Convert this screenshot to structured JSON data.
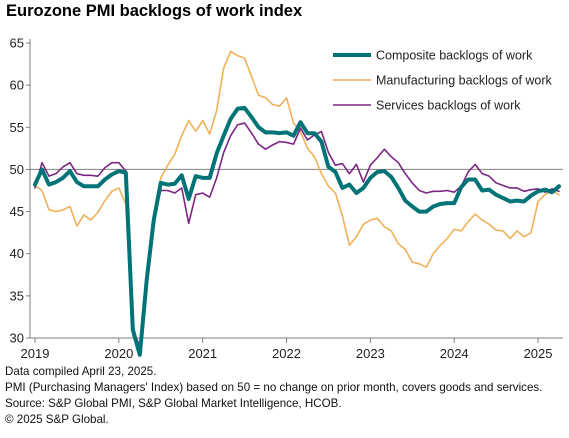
{
  "header": {
    "title": "Eurozone PMI backlogs of work index"
  },
  "footnotes": [
    "Data compiled April 23, 2025.",
    "PMI (Purchasing Managers' Index) based on 50 = no change on prior month, covers goods and services.",
    "Source: S&P Global PMI, S&P Global Market Intelligence, HCOB.",
    "© 2025 S&P Global."
  ],
  "chart_data": {
    "type": "line",
    "title": "Eurozone PMI backlogs of work index",
    "xlabel": "",
    "ylabel": "",
    "x_ticks": [
      "2019",
      "2020",
      "2021",
      "2022",
      "2023",
      "2024",
      "2025"
    ],
    "y_ticks": [
      30,
      35,
      40,
      45,
      50,
      55,
      60,
      65
    ],
    "xlim": [
      "2019-01",
      "2025-04"
    ],
    "ylim": [
      30,
      65
    ],
    "reference_line": 50,
    "grid": false,
    "legend_position": "top-right",
    "x": [
      "2019-01",
      "2019-02",
      "2019-03",
      "2019-04",
      "2019-05",
      "2019-06",
      "2019-07",
      "2019-08",
      "2019-09",
      "2019-10",
      "2019-11",
      "2019-12",
      "2020-01",
      "2020-02",
      "2020-03",
      "2020-04",
      "2020-05",
      "2020-06",
      "2020-07",
      "2020-08",
      "2020-09",
      "2020-10",
      "2020-11",
      "2020-12",
      "2021-01",
      "2021-02",
      "2021-03",
      "2021-04",
      "2021-05",
      "2021-06",
      "2021-07",
      "2021-08",
      "2021-09",
      "2021-10",
      "2021-11",
      "2021-12",
      "2022-01",
      "2022-02",
      "2022-03",
      "2022-04",
      "2022-05",
      "2022-06",
      "2022-07",
      "2022-08",
      "2022-09",
      "2022-10",
      "2022-11",
      "2022-12",
      "2023-01",
      "2023-02",
      "2023-03",
      "2023-04",
      "2023-05",
      "2023-06",
      "2023-07",
      "2023-08",
      "2023-09",
      "2023-10",
      "2023-11",
      "2023-12",
      "2024-01",
      "2024-02",
      "2024-03",
      "2024-04",
      "2024-05",
      "2024-06",
      "2024-07",
      "2024-08",
      "2024-09",
      "2024-10",
      "2024-11",
      "2024-12",
      "2025-01",
      "2025-02",
      "2025-03",
      "2025-04"
    ],
    "series": [
      {
        "name": "Composite backlogs of work",
        "color": "#007377",
        "values": [
          48.2,
          50.0,
          48.2,
          48.5,
          49.0,
          49.8,
          48.5,
          48.0,
          48.0,
          48.0,
          48.8,
          49.4,
          49.8,
          49.6,
          31.0,
          28.0,
          37.0,
          44.0,
          48.4,
          48.2,
          48.3,
          49.3,
          46.5,
          49.2,
          49.0,
          49.0,
          51.9,
          54.0,
          56.0,
          57.2,
          57.3,
          56.2,
          55.0,
          54.4,
          54.4,
          54.3,
          54.4,
          54.0,
          55.6,
          54.3,
          54.3,
          53.3,
          50.3,
          49.7,
          47.8,
          48.2,
          47.2,
          47.8,
          49.0,
          49.7,
          49.8,
          49.1,
          47.8,
          46.3,
          45.6,
          45.0,
          45.0,
          45.6,
          45.9,
          46.0,
          46.0,
          47.9,
          48.8,
          48.8,
          47.5,
          47.6,
          47.0,
          46.6,
          46.2,
          46.3,
          46.2,
          46.9,
          47.4,
          47.6,
          47.3,
          48.0
        ]
      },
      {
        "name": "Manufacturing backlogs of work",
        "color": "#f0b159",
        "values": [
          48.1,
          47.5,
          45.2,
          45.0,
          45.2,
          45.6,
          43.3,
          44.6,
          44.0,
          44.9,
          46.3,
          47.4,
          47.8,
          45.9,
          30.2,
          29.0,
          38.0,
          44.5,
          49.0,
          50.5,
          51.8,
          54.0,
          55.8,
          54.5,
          55.8,
          54.2,
          57.0,
          62.0,
          64.0,
          63.5,
          63.2,
          61.0,
          58.8,
          58.5,
          57.7,
          57.5,
          58.5,
          55.5,
          54.5,
          52.5,
          51.5,
          49.5,
          48.0,
          47.2,
          44.5,
          41.0,
          42.0,
          43.5,
          44.0,
          44.2,
          43.2,
          42.7,
          41.2,
          40.5,
          39.0,
          38.8,
          38.4,
          40.0,
          41.0,
          41.8,
          42.9,
          42.7,
          43.8,
          44.7,
          44.0,
          43.5,
          42.8,
          42.7,
          41.8,
          42.7,
          42.0,
          42.5,
          46.2,
          47.0,
          47.5,
          47.0
        ]
      },
      {
        "name": "Services backlogs of work",
        "color": "#7b2683",
        "values": [
          47.8,
          50.8,
          49.2,
          49.5,
          50.3,
          50.8,
          49.5,
          49.3,
          49.3,
          49.2,
          50.2,
          50.8,
          50.8,
          49.8,
          31.0,
          29.0,
          38.0,
          44.0,
          47.5,
          47.5,
          47.2,
          47.8,
          43.6,
          47.0,
          47.2,
          46.7,
          49.0,
          52.0,
          54.0,
          55.3,
          55.5,
          54.3,
          53.0,
          52.4,
          52.9,
          53.3,
          53.2,
          53.0,
          54.9,
          53.5,
          54.1,
          54.5,
          52.0,
          50.5,
          50.7,
          49.5,
          50.6,
          48.5,
          50.5,
          51.4,
          52.4,
          51.5,
          50.8,
          49.5,
          48.4,
          47.5,
          47.2,
          47.4,
          47.4,
          47.5,
          47.3,
          48.0,
          49.7,
          50.6,
          49.5,
          49.2,
          48.4,
          48.1,
          47.8,
          47.8,
          47.4,
          47.6,
          47.7,
          47.3,
          47.7,
          47.4
        ]
      }
    ]
  }
}
